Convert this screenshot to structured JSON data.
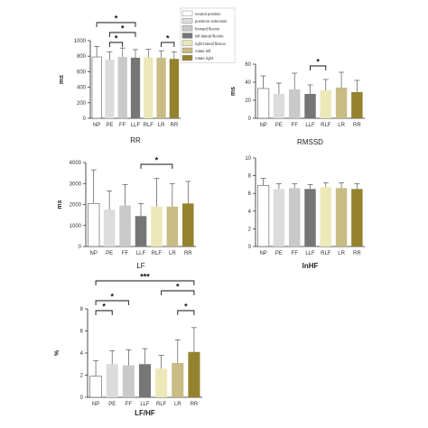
{
  "legend": {
    "entries": [
      "neutral position",
      "posterior extension",
      "forward flexion",
      "left lateral flexion",
      "right lateral flexion",
      "rotate left",
      "rotate right"
    ],
    "colors": [
      "#ffffff",
      "#dcdcdc",
      "#c9c9c9",
      "#767676",
      "#ece8b8",
      "#c8bb84",
      "#94822e"
    ]
  },
  "chart_data": [
    {
      "id": "rr",
      "type": "bar",
      "categories": [
        "NP",
        "PE",
        "FF",
        "LLF",
        "RLF",
        "LR",
        "RR"
      ],
      "values": [
        790,
        755,
        790,
        780,
        785,
        780,
        765
      ],
      "errors": [
        135,
        100,
        115,
        105,
        105,
        90,
        90
      ],
      "title": "",
      "xlabel": "RR",
      "xlabel_bold": false,
      "ylabel": "ms",
      "ylim": [
        0,
        1000
      ],
      "yticks": [
        0,
        200,
        400,
        600,
        800,
        1000
      ],
      "grid": false,
      "significance": [
        {
          "from": "NP",
          "to": "LLF",
          "label": "*",
          "level": 3
        },
        {
          "from": "PE",
          "to": "LLF",
          "label": "*",
          "level": 2
        },
        {
          "from": "PE",
          "to": "FF",
          "label": "*",
          "level": 1
        },
        {
          "from": "LR",
          "to": "RR",
          "label": "*",
          "level": 1
        }
      ]
    },
    {
      "id": "rmssd",
      "type": "bar",
      "categories": [
        "NP",
        "PE",
        "FF",
        "LLF",
        "RLF",
        "LR",
        "RR"
      ],
      "values": [
        33,
        27,
        32,
        27,
        31,
        34,
        29
      ],
      "errors": [
        14,
        12,
        18,
        10,
        12,
        17,
        13
      ],
      "title": "",
      "xlabel": "RMSSD",
      "xlabel_bold": false,
      "ylabel": "ms",
      "ylim": [
        0,
        60
      ],
      "yticks": [
        0,
        20,
        40,
        60
      ],
      "grid": false,
      "significance": [
        {
          "from": "LLF",
          "to": "RLF",
          "label": "*",
          "level": 1
        }
      ]
    },
    {
      "id": "lf",
      "type": "bar",
      "categories": [
        "NP",
        "PE",
        "FF",
        "LLF",
        "RLF",
        "LR",
        "RR"
      ],
      "values": [
        2050,
        1750,
        1950,
        1450,
        1900,
        1900,
        2050
      ],
      "errors": [
        1600,
        900,
        1000,
        600,
        1350,
        1100,
        1050
      ],
      "title": "",
      "xlabel": "LF",
      "xlabel_bold": false,
      "ylabel": "ms",
      "ylim": [
        0,
        4000
      ],
      "yticks": [
        0,
        1000,
        2000,
        3000,
        4000
      ],
      "grid": false,
      "significance": [
        {
          "from": "LLF",
          "to": "LR",
          "label": "*",
          "level": 1
        }
      ]
    },
    {
      "id": "lnhf",
      "type": "bar",
      "categories": [
        "NP",
        "PE",
        "FF",
        "LLF",
        "RLF",
        "LR",
        "RR"
      ],
      "values": [
        6.9,
        6.5,
        6.6,
        6.5,
        6.7,
        6.6,
        6.5
      ],
      "errors": [
        0.8,
        0.6,
        0.5,
        0.5,
        0.5,
        0.6,
        0.6
      ],
      "title": "",
      "xlabel": "lnHF",
      "xlabel_bold": true,
      "ylabel": "",
      "ylim": [
        0,
        10
      ],
      "yticks": [
        0,
        2,
        4,
        6,
        8,
        10
      ],
      "grid": false,
      "significance": []
    },
    {
      "id": "lfhf",
      "type": "bar",
      "categories": [
        "NP",
        "PE",
        "FF",
        "LLF",
        "RLF",
        "LR",
        "RR"
      ],
      "values": [
        1.9,
        3.0,
        2.9,
        3.0,
        2.6,
        3.1,
        4.1
      ],
      "errors": [
        1.4,
        1.2,
        1.4,
        1.4,
        1.2,
        2.1,
        2.2
      ],
      "title": "",
      "xlabel": "LF/HF",
      "xlabel_bold": true,
      "ylabel": "%",
      "ylim": [
        0,
        8
      ],
      "yticks": [
        0,
        2,
        4,
        6,
        8
      ],
      "grid": false,
      "significance": [
        {
          "from": "NP",
          "to": "RR",
          "label": "***",
          "level": 4
        },
        {
          "from": "RLF",
          "to": "RR",
          "label": "*",
          "level": 3
        },
        {
          "from": "NP",
          "to": "FF",
          "label": "*",
          "level": 2
        },
        {
          "from": "NP",
          "to": "PE",
          "label": "*",
          "level": 1
        },
        {
          "from": "LR",
          "to": "RR",
          "label": "*",
          "level": 1
        }
      ]
    }
  ]
}
